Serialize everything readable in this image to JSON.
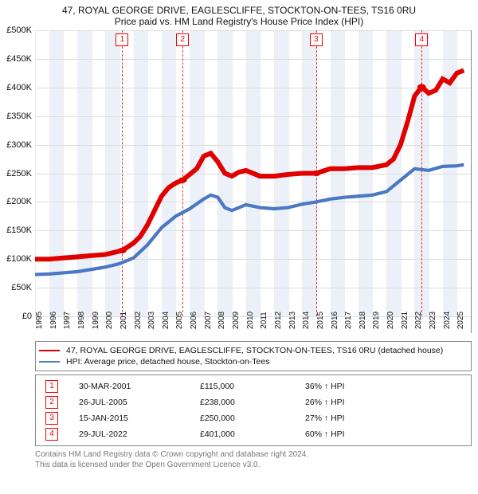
{
  "title": "47, ROYAL GEORGE DRIVE, EAGLESCLIFFE, STOCKTON-ON-TEES, TS16 0RU",
  "subtitle": "Price paid vs. HM Land Registry's House Price Index (HPI)",
  "chart": {
    "type": "line",
    "x_range": [
      1995,
      2026
    ],
    "y_range": [
      0,
      500000
    ],
    "y_ticks": [
      0,
      50000,
      100000,
      150000,
      200000,
      250000,
      300000,
      350000,
      400000,
      450000,
      500000
    ],
    "y_tick_labels": [
      "£0",
      "£50K",
      "£100K",
      "£150K",
      "£200K",
      "£250K",
      "£300K",
      "£350K",
      "£400K",
      "£450K",
      "£500K"
    ],
    "x_ticks": [
      1995,
      1996,
      1997,
      1998,
      1999,
      2000,
      2001,
      2002,
      2003,
      2004,
      2005,
      2006,
      2007,
      2008,
      2009,
      2010,
      2011,
      2012,
      2013,
      2014,
      2015,
      2016,
      2017,
      2018,
      2019,
      2020,
      2021,
      2022,
      2023,
      2024,
      2025
    ],
    "background_color": "#ffffff",
    "grid_color": "#dddddd",
    "band_color": "#ecf1f9",
    "band_years": [
      1996,
      1998,
      2000,
      2002,
      2004,
      2006,
      2008,
      2010,
      2012,
      2014,
      2016,
      2018,
      2020,
      2022,
      2024
    ],
    "marker_line_color": "#e03030",
    "series": [
      {
        "key": "price",
        "label": "47, ROYAL GEORGE DRIVE, EAGLESCLIFFE, STOCKTON-ON-TEES, TS16 0RU (detached house)",
        "color": "#e00000",
        "width": 2,
        "points": [
          [
            1995.0,
            100000
          ],
          [
            1996.0,
            100000
          ],
          [
            1997.0,
            102000
          ],
          [
            1998.0,
            104000
          ],
          [
            1999.0,
            106000
          ],
          [
            2000.0,
            108000
          ],
          [
            2001.2,
            115000
          ],
          [
            2002.0,
            128000
          ],
          [
            2002.5,
            140000
          ],
          [
            2003.0,
            160000
          ],
          [
            2003.5,
            185000
          ],
          [
            2004.0,
            210000
          ],
          [
            2004.5,
            225000
          ],
          [
            2005.0,
            233000
          ],
          [
            2005.5,
            238000
          ],
          [
            2006.0,
            248000
          ],
          [
            2006.5,
            258000
          ],
          [
            2007.0,
            280000
          ],
          [
            2007.5,
            285000
          ],
          [
            2008.0,
            270000
          ],
          [
            2008.5,
            250000
          ],
          [
            2009.0,
            245000
          ],
          [
            2009.5,
            252000
          ],
          [
            2010.0,
            255000
          ],
          [
            2011.0,
            245000
          ],
          [
            2012.0,
            245000
          ],
          [
            2013.0,
            248000
          ],
          [
            2014.0,
            250000
          ],
          [
            2015.0,
            250000
          ],
          [
            2016.0,
            258000
          ],
          [
            2017.0,
            258000
          ],
          [
            2018.0,
            260000
          ],
          [
            2019.0,
            260000
          ],
          [
            2020.0,
            265000
          ],
          [
            2020.5,
            275000
          ],
          [
            2021.0,
            300000
          ],
          [
            2021.5,
            340000
          ],
          [
            2022.0,
            385000
          ],
          [
            2022.5,
            401000
          ],
          [
            2023.0,
            390000
          ],
          [
            2023.5,
            395000
          ],
          [
            2024.0,
            415000
          ],
          [
            2024.5,
            408000
          ],
          [
            2025.0,
            425000
          ],
          [
            2025.5,
            430000
          ]
        ],
        "markers": [
          {
            "num": 1,
            "x": 2001.2,
            "y": 115000
          },
          {
            "num": 2,
            "x": 2005.5,
            "y": 238000
          },
          {
            "num": 3,
            "x": 2015.0,
            "y": 250000
          },
          {
            "num": 4,
            "x": 2022.5,
            "y": 401000
          }
        ]
      },
      {
        "key": "hpi",
        "label": "HPI: Average price, detached house, Stockton-on-Tees",
        "color": "#4a78c4",
        "width": 1.4,
        "points": [
          [
            1995.0,
            73000
          ],
          [
            1996.0,
            74000
          ],
          [
            1997.0,
            76000
          ],
          [
            1998.0,
            78000
          ],
          [
            1999.0,
            82000
          ],
          [
            2000.0,
            86000
          ],
          [
            2001.0,
            92000
          ],
          [
            2002.0,
            102000
          ],
          [
            2003.0,
            125000
          ],
          [
            2004.0,
            155000
          ],
          [
            2005.0,
            175000
          ],
          [
            2006.0,
            188000
          ],
          [
            2007.0,
            205000
          ],
          [
            2007.5,
            212000
          ],
          [
            2008.0,
            208000
          ],
          [
            2008.5,
            190000
          ],
          [
            2009.0,
            185000
          ],
          [
            2010.0,
            195000
          ],
          [
            2011.0,
            190000
          ],
          [
            2012.0,
            188000
          ],
          [
            2013.0,
            190000
          ],
          [
            2014.0,
            196000
          ],
          [
            2015.0,
            200000
          ],
          [
            2016.0,
            205000
          ],
          [
            2017.0,
            208000
          ],
          [
            2018.0,
            210000
          ],
          [
            2019.0,
            212000
          ],
          [
            2020.0,
            218000
          ],
          [
            2021.0,
            238000
          ],
          [
            2022.0,
            258000
          ],
          [
            2023.0,
            255000
          ],
          [
            2024.0,
            262000
          ],
          [
            2025.0,
            263000
          ],
          [
            2025.5,
            265000
          ]
        ]
      }
    ]
  },
  "legend": {
    "items": [
      {
        "color": "#e00000",
        "label": "47, ROYAL GEORGE DRIVE, EAGLESCLIFFE, STOCKTON-ON-TEES, TS16 0RU (detached house)"
      },
      {
        "color": "#4a78c4",
        "label": "HPI: Average price, detached house, Stockton-on-Tees"
      }
    ]
  },
  "events": [
    {
      "num": "1",
      "date": "30-MAR-2001",
      "price": "£115,000",
      "delta": "36% ↑ HPI"
    },
    {
      "num": "2",
      "date": "26-JUL-2005",
      "price": "£238,000",
      "delta": "26% ↑ HPI"
    },
    {
      "num": "3",
      "date": "15-JAN-2015",
      "price": "£250,000",
      "delta": "27% ↑ HPI"
    },
    {
      "num": "4",
      "date": "29-JUL-2022",
      "price": "£401,000",
      "delta": "60% ↑ HPI"
    }
  ],
  "attribution": {
    "line1": "Contains HM Land Registry data © Crown copyright and database right 2024.",
    "line2": "This data is licensed under the Open Government Licence v3.0."
  }
}
